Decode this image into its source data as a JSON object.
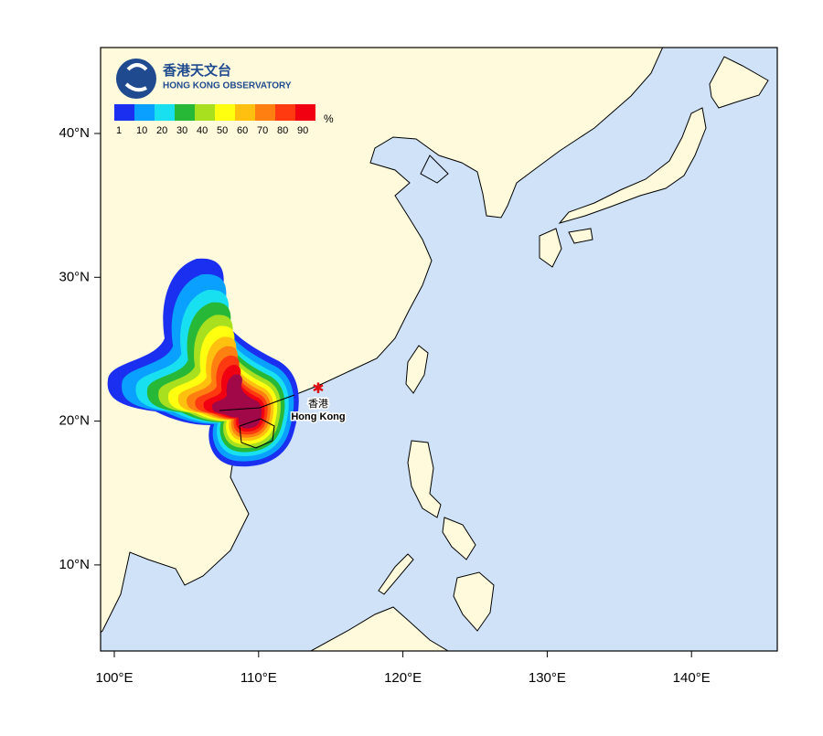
{
  "logo": {
    "chinese": "香港天文台",
    "english": "HONG KONG OBSERVATORY"
  },
  "legend": {
    "labels": [
      "1",
      "10",
      "20",
      "30",
      "40",
      "50",
      "60",
      "70",
      "80",
      "90"
    ],
    "unit": "%"
  },
  "axes": {
    "lat_labels": [
      "40°N",
      "30°N",
      "20°N",
      "10°N"
    ],
    "lon_labels": [
      "100°E",
      "110°E",
      "120°E",
      "130°E",
      "140°E"
    ]
  },
  "marker": {
    "chinese": "香港",
    "english": "Hong Kong"
  }
}
